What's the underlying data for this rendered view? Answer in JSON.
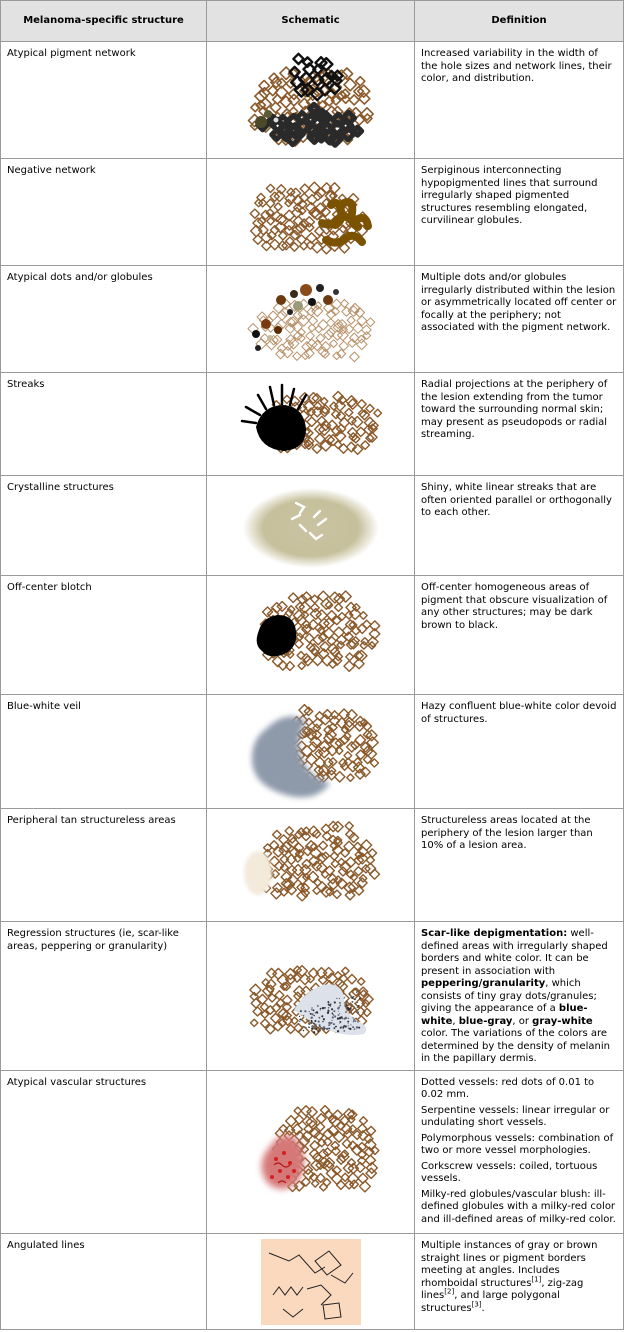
{
  "headers": {
    "structure": "Melanoma-specific structure",
    "schematic": "Schematic",
    "definition": "Definition"
  },
  "rows": [
    {
      "structure": "Atypical pigment network",
      "definition": "Increased variability in the width of the hole sizes and network lines, their color, and distribution."
    },
    {
      "structure": "Negative network",
      "definition": "Serpiginous interconnecting hypopigmented lines that surround irregularly shaped pigmented structures resembling elongated, curvilinear globules."
    },
    {
      "structure": "Atypical dots and/or globules",
      "definition": "Multiple dots and/or globules irregularly distributed within the lesion or asymmetrically located off center or focally at the periphery; not associated with the pigment network."
    },
    {
      "structure": "Streaks",
      "definition": "Radial projections at the periphery of the lesion extending from the tumor toward the surrounding normal skin; may present as pseudopods or radial streaming."
    },
    {
      "structure": "Crystalline structures",
      "definition": "Shiny, white linear streaks that are often oriented parallel or orthogonally to each other."
    },
    {
      "structure": "Off-center blotch",
      "definition": "Off-center homogeneous areas of pigment that obscure visualization of any other structures; may be dark brown to black."
    },
    {
      "structure": "Blue-white veil",
      "definition": "Hazy confluent blue-white color devoid of structures."
    },
    {
      "structure": "Peripheral tan structureless areas",
      "definition": "Structureless areas located at the periphery of the lesion larger than 10% of a lesion area."
    },
    {
      "structure": "Regression structures (ie, scar-like areas, peppering or granularity)",
      "def_parts": {
        "b1": "Scar-like depigmentation:",
        "t1": " well-defined areas with irregularly shaped borders and white color. It can be present in association with ",
        "b2": "peppering/granularity",
        "t2": ", which consists of tiny gray dots/granules; giving the appearance of a ",
        "b3": "blue-white",
        "t3": ", ",
        "b4": "blue-gray",
        "t4": ", or ",
        "b5": "gray-white",
        "t5": " color. The variations of the colors are determined by the density of melanin in the papillary dermis."
      }
    },
    {
      "structure": "Atypical vascular structures",
      "def_lines": [
        "Dotted vessels: red dots of 0.01 to 0.02 mm.",
        "Serpentine vessels: linear irregular or undulating short vessels.",
        "Polymorphous vessels: combination of two or more vessel morphologies.",
        "Corkscrew vessels: coiled, tortuous vessels.",
        "Milky-red globules/vascular blush: ill-defined globules with a milky-red color and ill-defined areas of milky-red color."
      ]
    },
    {
      "structure": "Angulated lines",
      "def_parts": {
        "t1": "Multiple instances of gray or brown straight lines or pigment borders meeting at angles. Includes rhomboidal structures",
        "s1": "[1]",
        "t2": ", zig-zag lines",
        "s2": "[2]",
        "t3": ", and large polygonal structures",
        "s3": "[3]",
        "t4": "."
      }
    }
  ],
  "colors": {
    "network_brown": "#8b5a2b",
    "header_bg": "#e2e2e2",
    "border": "#9a9a9a"
  }
}
